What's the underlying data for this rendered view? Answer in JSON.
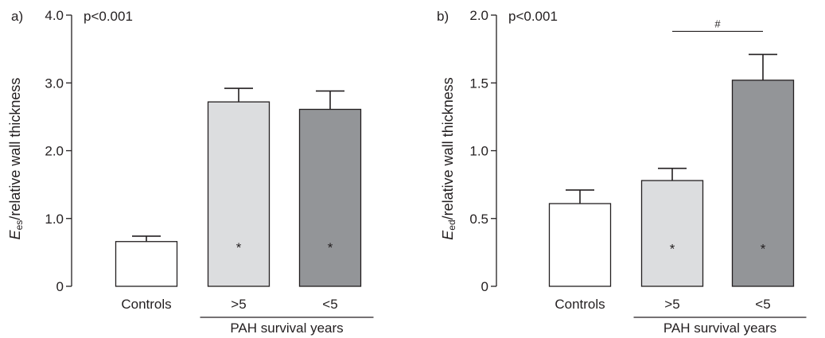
{
  "chart_data": [
    {
      "type": "bar",
      "panel_label": "a)",
      "annotation": "p<0.001",
      "ylabel": {
        "italic": "E",
        "sub": "es",
        "rest": "/relative wall thickness"
      },
      "ylim": [
        0,
        4.0
      ],
      "yticks": [
        {
          "v": 0,
          "label": "0"
        },
        {
          "v": 1,
          "label": "1.0"
        },
        {
          "v": 2,
          "label": "2.0"
        },
        {
          "v": 3,
          "label": "3.0"
        },
        {
          "v": 4,
          "label": "4.0"
        }
      ],
      "categories": [
        "Controls",
        ">5",
        "<5"
      ],
      "group_label": "PAH survival years",
      "values": [
        0.66,
        2.72,
        2.61
      ],
      "errors": [
        0.08,
        0.2,
        0.27
      ],
      "fills": [
        "#ffffff",
        "#dcdddf",
        "#939598"
      ],
      "markers": [
        "",
        "*",
        "*"
      ],
      "marker_value": 0.6,
      "bracket": null
    },
    {
      "type": "bar",
      "panel_label": "b)",
      "annotation": "p<0.001",
      "ylabel": {
        "italic": "E",
        "sub": "ed",
        "rest": "/relative wall thickness"
      },
      "ylim": [
        0,
        2.0
      ],
      "yticks": [
        {
          "v": 0,
          "label": "0"
        },
        {
          "v": 0.5,
          "label": "0.5"
        },
        {
          "v": 1.0,
          "label": "1.0"
        },
        {
          "v": 1.5,
          "label": "1.5"
        },
        {
          "v": 2.0,
          "label": "2.0"
        }
      ],
      "categories": [
        "Controls",
        ">5",
        "<5"
      ],
      "group_label": "PAH survival years",
      "values": [
        0.61,
        0.78,
        1.52
      ],
      "errors": [
        0.1,
        0.09,
        0.19
      ],
      "fills": [
        "#ffffff",
        "#dcdddf",
        "#939598"
      ],
      "markers": [
        "",
        "*",
        "*"
      ],
      "marker_value": 0.29,
      "bracket": {
        "from": 1,
        "to": 2,
        "value": 1.88,
        "label": "#"
      }
    }
  ]
}
